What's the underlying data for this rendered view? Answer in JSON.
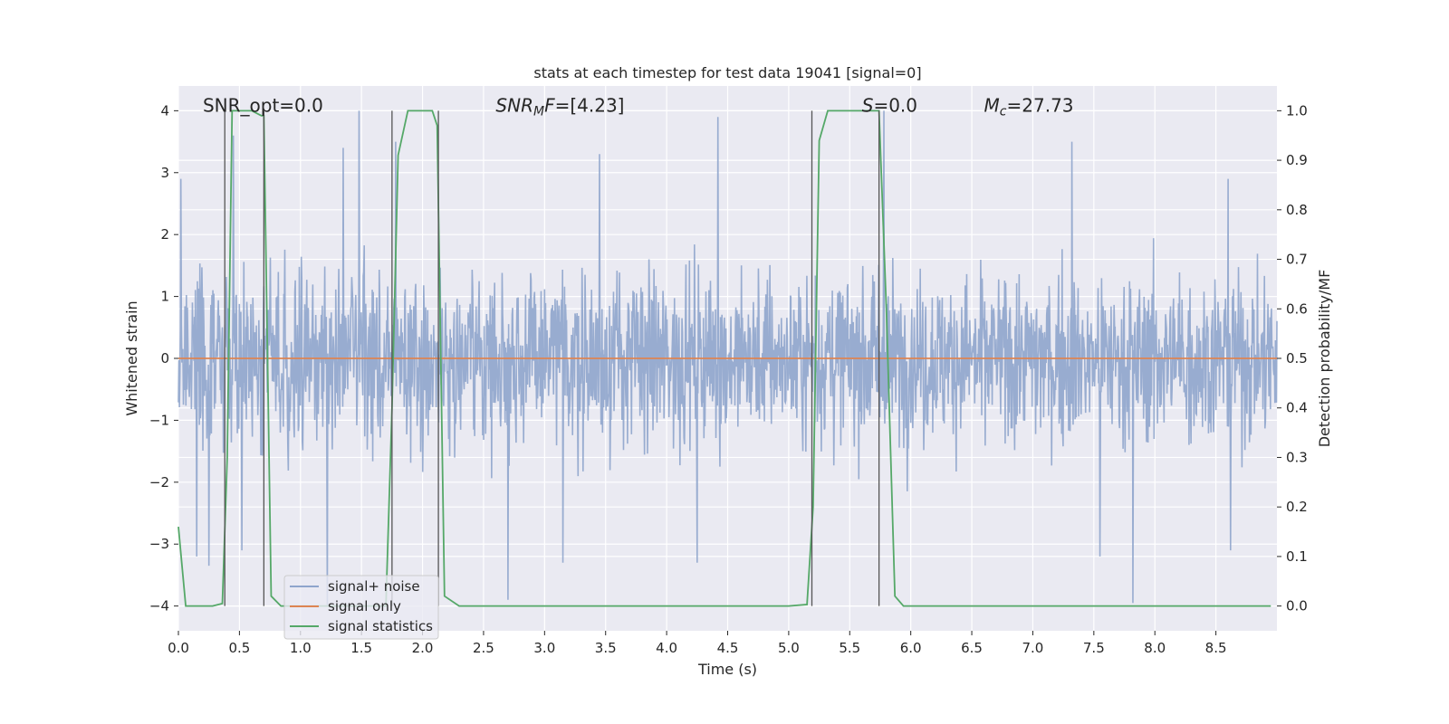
{
  "chart_data": {
    "type": "line",
    "title": "stats at each timestep for test data 19041 [signal=0]",
    "xlabel": "Time (s)",
    "ylabel_left": "Whitened strain",
    "ylabel_right": "Detection probability/MF",
    "xlim": [
      0,
      9.0
    ],
    "ylim_left": [
      -4.4,
      4.4
    ],
    "ylim_right": [
      -0.05,
      1.05
    ],
    "xticks": [
      0.0,
      0.5,
      1.0,
      1.5,
      2.0,
      2.5,
      3.0,
      3.5,
      4.0,
      4.5,
      5.0,
      5.5,
      6.0,
      6.5,
      7.0,
      7.5,
      8.0,
      8.5
    ],
    "xtick_labels": [
      "0.0",
      "0.5",
      "1.0",
      "1.5",
      "2.0",
      "2.5",
      "3.0",
      "3.5",
      "4.0",
      "4.5",
      "5.0",
      "5.5",
      "6.0",
      "6.5",
      "7.0",
      "7.5",
      "8.0",
      "8.5"
    ],
    "yticks_left": [
      -4,
      -3,
      -2,
      -1,
      0,
      1,
      2,
      3,
      4
    ],
    "ytick_labels_left": [
      "−4",
      "−3",
      "−2",
      "−1",
      "0",
      "1",
      "2",
      "3",
      "4"
    ],
    "yticks_right": [
      0.0,
      0.1,
      0.2,
      0.3,
      0.4,
      0.5,
      0.6,
      0.7,
      0.8,
      0.9,
      1.0
    ],
    "ytick_labels_right": [
      "0.0",
      "0.1",
      "0.2",
      "0.3",
      "0.4",
      "0.5",
      "0.6",
      "0.7",
      "0.8",
      "0.9",
      "1.0"
    ],
    "grid": true,
    "legend_position": "lower-left",
    "annotations": [
      {
        "text": "SNR_opt=0.0",
        "x": 0.2,
        "y": 4.0
      },
      {
        "text": "SNR",
        "sub": "M",
        "tail": "F=[4.23]",
        "italic": true,
        "x": 2.6,
        "y": 4.0
      },
      {
        "text": "S",
        "tail": "=0.0",
        "italic": true,
        "x": 5.6,
        "y": 4.0
      },
      {
        "text": "M",
        "sub": "c",
        "tail": "=27.73",
        "italic": true,
        "x": 6.6,
        "y": 4.0
      }
    ],
    "series": [
      {
        "name": "signal+ noise",
        "color": "#8fa5cc",
        "kind": "noise",
        "axis": "left",
        "x_range": [
          0,
          9.0
        ],
        "band": 1.6,
        "peaks": [
          {
            "x": 0.02,
            "y": 2.9
          },
          {
            "x": 0.45,
            "y": 3.6
          },
          {
            "x": 1.48,
            "y": 4.0
          },
          {
            "x": 1.78,
            "y": 3.5
          },
          {
            "x": 4.42,
            "y": 3.9
          },
          {
            "x": 5.78,
            "y": 4.0
          },
          {
            "x": 7.32,
            "y": 3.5
          },
          {
            "x": 1.35,
            "y": 3.4
          },
          {
            "x": 3.45,
            "y": 3.3
          },
          {
            "x": 8.6,
            "y": 2.9
          },
          {
            "x": 2.7,
            "y": -3.9
          },
          {
            "x": 7.82,
            "y": -3.95
          },
          {
            "x": 1.22,
            "y": -4.0
          },
          {
            "x": 0.15,
            "y": -3.2
          },
          {
            "x": 0.52,
            "y": -3.1
          },
          {
            "x": 4.25,
            "y": -3.3
          },
          {
            "x": 7.55,
            "y": -3.2
          },
          {
            "x": 8.62,
            "y": -3.1
          },
          {
            "x": 3.15,
            "y": -3.3
          },
          {
            "x": 0.25,
            "y": -3.35
          }
        ]
      },
      {
        "name": "signal only",
        "color": "#dd8452",
        "kind": "line",
        "axis": "left",
        "x": [
          0,
          9.0
        ],
        "y": [
          0,
          0
        ]
      },
      {
        "name": "signal statistics",
        "color": "#55a868",
        "kind": "line",
        "axis": "right",
        "x": [
          0.0,
          0.06,
          0.12,
          0.2,
          0.28,
          0.36,
          0.4,
          0.44,
          0.52,
          0.6,
          0.68,
          0.7,
          0.76,
          0.84,
          0.92,
          1.0,
          1.2,
          1.5,
          1.7,
          1.75,
          1.8,
          1.88,
          2.0,
          2.08,
          2.12,
          2.18,
          2.3,
          2.6,
          3.0,
          3.5,
          4.0,
          4.5,
          5.0,
          5.15,
          5.2,
          5.25,
          5.32,
          5.5,
          5.6,
          5.74,
          5.8,
          5.87,
          5.94,
          6.1,
          6.5,
          7.0,
          7.5,
          8.0,
          8.5,
          8.95
        ],
        "y": [
          0.16,
          0.0,
          -0.0,
          0.0,
          0.0,
          0.005,
          0.3,
          1.0,
          1.0,
          1.0,
          0.99,
          0.99,
          0.02,
          0.0,
          0.0,
          0.0,
          0.0,
          0.0,
          0.0,
          0.4,
          0.91,
          1.0,
          1.0,
          1.0,
          0.97,
          0.02,
          0.0,
          0.0,
          0.0,
          0.0,
          0.0,
          0.0,
          0.0,
          0.003,
          0.2,
          0.94,
          1.0,
          1.0,
          1.0,
          1.0,
          0.6,
          0.02,
          0.0,
          0.0,
          0.0,
          0.0,
          0.0,
          0.0,
          0.0,
          0.0
        ]
      }
    ],
    "vlines": [
      0.38,
      0.7,
      1.75,
      2.13,
      5.19,
      5.74
    ]
  }
}
